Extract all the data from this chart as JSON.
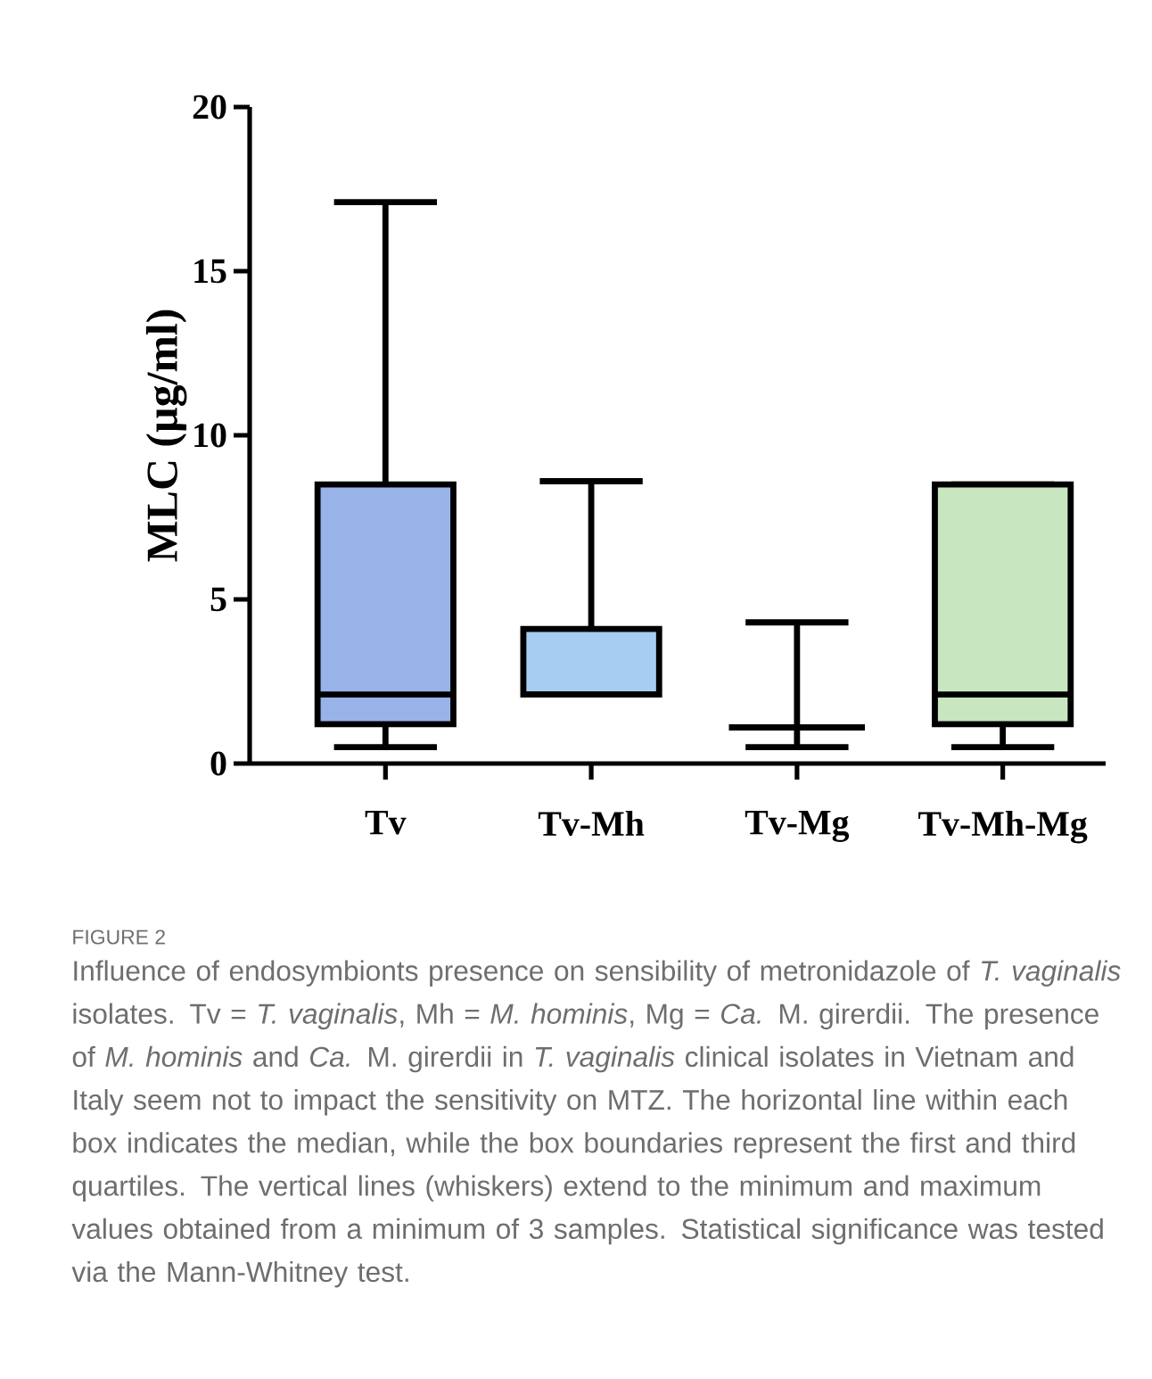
{
  "chart_data": {
    "type": "box",
    "ylabel": "MLC (µg/ml)",
    "categories": [
      "Tv",
      "Tv-Mh",
      "Tv-Mg",
      "Tv-Mh-Mg"
    ],
    "boxes": [
      {
        "low": 0.5,
        "q1": 1.2,
        "median": 2.1,
        "q3": 8.5,
        "high": 17.1
      },
      {
        "low": 2.1,
        "q1": 2.1,
        "median": 2.1,
        "q3": 4.1,
        "high": 8.6
      },
      {
        "low": 0.5,
        "q1": 1.1,
        "median": 1.1,
        "q3": 1.1,
        "high": 4.3
      },
      {
        "low": 0.5,
        "q1": 1.2,
        "median": 2.1,
        "q3": 8.5,
        "high": 8.5
      }
    ],
    "colors": [
      "#98b3e8",
      "#a7cdf2",
      null,
      "#c8e6c0"
    ],
    "ylim": [
      0,
      20
    ],
    "yticks": [
      0,
      5,
      10,
      15,
      20
    ],
    "annotations": [
      "FIGURE 2",
      "Influence of endosymbionts presence on sensibility of metronidazole of *T. vaginalis* isolates. Tv = *T. vaginalis*, Mh = *M. hominis*, Mg = *Ca.* M. girerdii. The presence of *M. hominis* and *Ca.* M. girerdii in *T. vaginalis* clinical isolates in Vietnam and Italy seem not to impact the sensitivity on MTZ. The horizontal line within each box indicates the median, while the box boundaries represent the first and third quartiles. The vertical lines (whiskers) extend to the minimum and maximum values obtained from a minimum of 3 samples. Statistical significance was tested via the Mann-Whitney test."
    ]
  }
}
